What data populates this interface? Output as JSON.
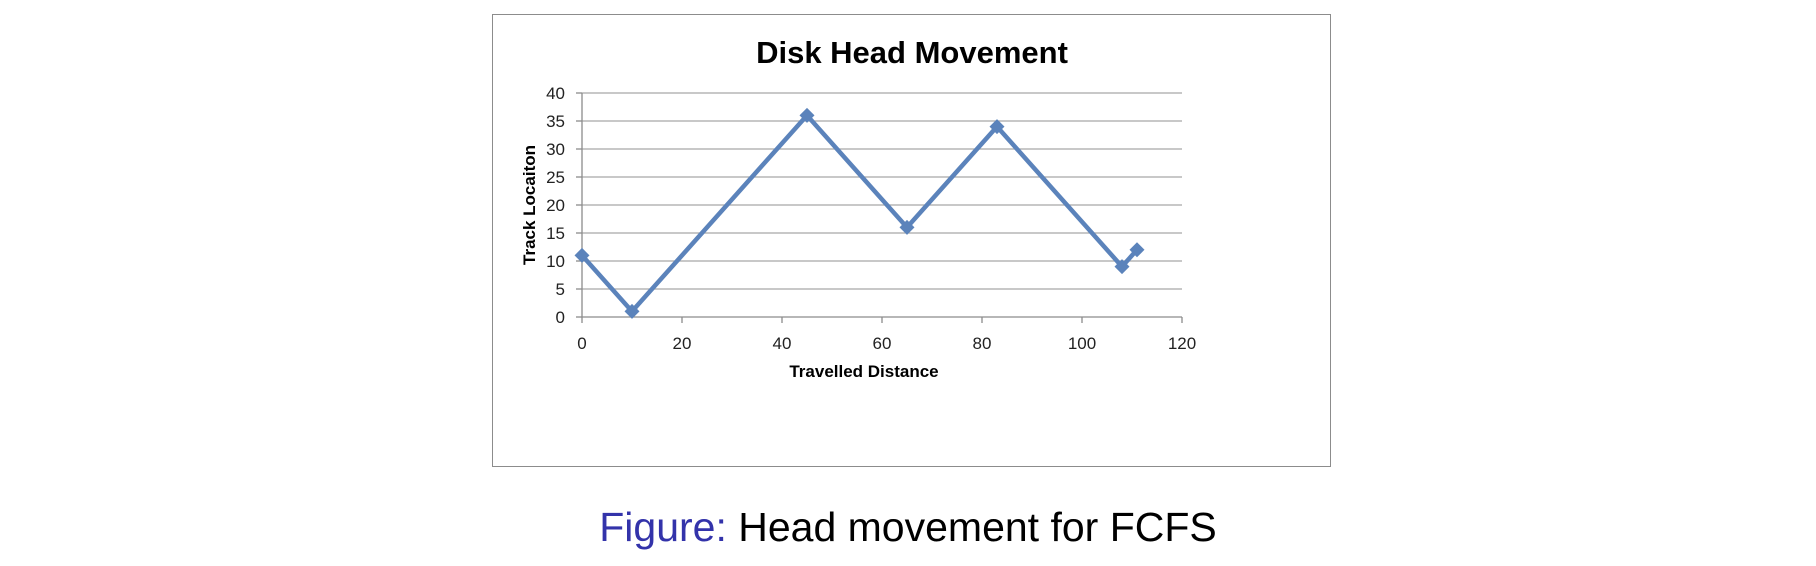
{
  "colors": {
    "series": "#5b83bb",
    "grid": "#a6a6a6",
    "caption_prefix": "#3333aa"
  },
  "chart_data": {
    "type": "line",
    "title": "Disk Head Movement",
    "xlabel": "Travelled Distance",
    "ylabel": "Track Locaiton",
    "xlim": [
      0,
      120
    ],
    "ylim": [
      0,
      40
    ],
    "xticks": [
      0,
      20,
      40,
      60,
      80,
      100,
      120
    ],
    "yticks": [
      0,
      5,
      10,
      15,
      20,
      25,
      30,
      35,
      40
    ],
    "grid": "horizontal",
    "marker": "diamond",
    "series": [
      {
        "x": [
          0,
          10,
          45,
          65,
          83,
          108,
          111
        ],
        "y": [
          11,
          1,
          36,
          16,
          34,
          9,
          12
        ]
      }
    ]
  },
  "caption": {
    "prefix": "Figure:",
    "text": "Head movement for FCFS"
  }
}
